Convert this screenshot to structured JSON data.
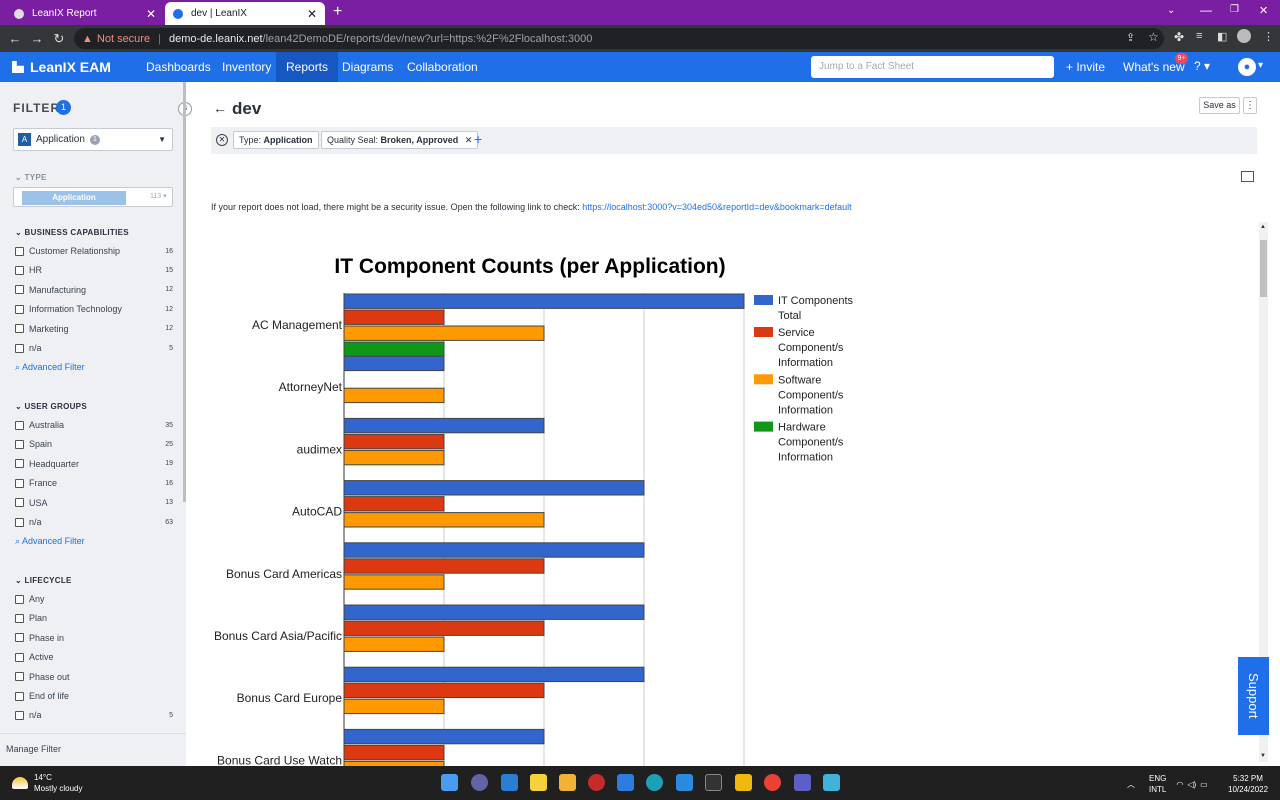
{
  "browser": {
    "tabs": [
      {
        "label": "LeanIX Report"
      },
      {
        "label": "dev | LeanIX"
      }
    ],
    "security": "Not secure",
    "url_host": "demo-de.leanix.net",
    "url_path": "/lean42DemoDE/reports/dev/new?url=https:%2F%2Flocalhost:3000"
  },
  "app": {
    "brand": "LeanIX EAM",
    "nav": [
      "Dashboards",
      "Inventory",
      "Reports",
      "Diagrams",
      "Collaboration"
    ],
    "search_placeholder": "Jump to a Fact Sheet",
    "invite": "+ Invite",
    "whats_new": "What's new",
    "whats_new_badge": "9+",
    "help": "?"
  },
  "sidebar": {
    "title": "FILTER",
    "count": "1",
    "type_select": {
      "label": "Application",
      "count": "1"
    },
    "type_section": {
      "title": "TYPE",
      "chip": "Application",
      "count": "113"
    },
    "business_capabilities": {
      "title": "BUSINESS CAPABILITIES",
      "items": [
        {
          "label": "Customer Relationship",
          "count": "16"
        },
        {
          "label": "HR",
          "count": "15"
        },
        {
          "label": "Manufacturing",
          "count": "12"
        },
        {
          "label": "Information Technology",
          "count": "12"
        },
        {
          "label": "Marketing",
          "count": "12"
        },
        {
          "label": "n/a",
          "count": "5"
        }
      ]
    },
    "advanced_filter": "Advanced Filter",
    "user_groups": {
      "title": "USER GROUPS",
      "items": [
        {
          "label": "Australia",
          "count": "35"
        },
        {
          "label": "Spain",
          "count": "25"
        },
        {
          "label": "Headquarter",
          "count": "19"
        },
        {
          "label": "France",
          "count": "16"
        },
        {
          "label": "USA",
          "count": "13"
        },
        {
          "label": "n/a",
          "count": "63"
        }
      ]
    },
    "lifecycle": {
      "title": "LIFECYCLE",
      "items": [
        {
          "label": "Any",
          "count": ""
        },
        {
          "label": "Plan",
          "count": ""
        },
        {
          "label": "Phase in",
          "count": ""
        },
        {
          "label": "Active",
          "count": ""
        },
        {
          "label": "Phase out",
          "count": ""
        },
        {
          "label": "End of life",
          "count": ""
        },
        {
          "label": "n/a",
          "count": "5"
        }
      ]
    },
    "manage": "Manage Filter"
  },
  "main": {
    "title": "dev",
    "save_as": "Save as",
    "filters": [
      {
        "key": "Type:",
        "value": "Application"
      },
      {
        "key": "Quality Seal:",
        "value": "Broken, Approved"
      }
    ],
    "notice": "If your report does not load, there might be a security issue. Open the following link to check: ",
    "notice_link": "https://localhost:3000?v=304ed50&reportId=dev&bookmark=default",
    "support": "Support"
  },
  "chart_data": {
    "type": "bar",
    "orientation": "horizontal",
    "title": "IT Component Counts (per Application)",
    "xlim": [
      0,
      4
    ],
    "grid": true,
    "legend_position": "right",
    "categories": [
      "AC Management",
      "AttorneyNet",
      "audimex",
      "AutoCAD",
      "Bonus Card Americas",
      "Bonus Card Asia/Pacific",
      "Bonus Card Europe",
      "Bonus Card Use Watch"
    ],
    "series": [
      {
        "name": "IT Components Total",
        "color": "#3366cc",
        "values": [
          4,
          1,
          2,
          3,
          3,
          3,
          3,
          2
        ]
      },
      {
        "name": "Service Component/s Information",
        "color": "#dc3912",
        "values": [
          1,
          0,
          1,
          1,
          2,
          2,
          2,
          1
        ]
      },
      {
        "name": "Software Component/s Information",
        "color": "#ff9900",
        "values": [
          2,
          1,
          1,
          2,
          1,
          1,
          1,
          1
        ]
      },
      {
        "name": "Hardware Component/s Information",
        "color": "#109618",
        "values": [
          1,
          0,
          0,
          0,
          0,
          0,
          0,
          0
        ]
      }
    ]
  },
  "taskbar": {
    "temperature": "14°C",
    "weather": "Mostly cloudy",
    "lang1": "ENG",
    "lang2": "INTL",
    "time": "5:32 PM",
    "date": "10/24/2022"
  }
}
